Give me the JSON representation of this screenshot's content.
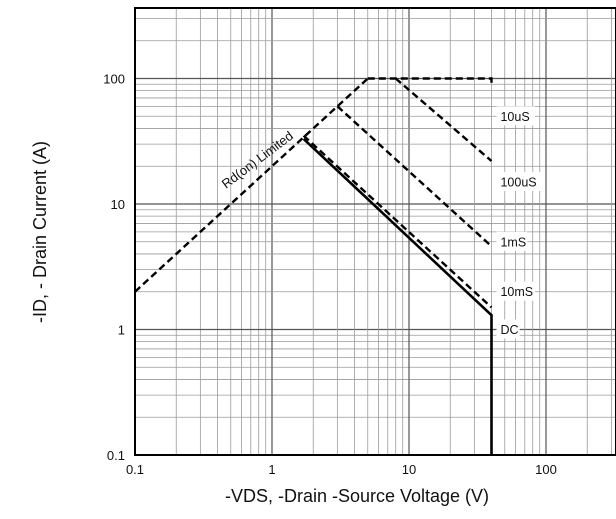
{
  "chart_data": {
    "type": "line",
    "title": "",
    "xlabel": "-VDS, -Drain -Source Voltage (V)",
    "ylabel": "-ID, - Drain Current (A)",
    "xscale": "log",
    "yscale": "log",
    "xlim": [
      0.1,
      400
    ],
    "ylim": [
      0.1,
      400
    ],
    "grid": true,
    "x_ticks": [
      "0.1",
      "1",
      "10",
      "100"
    ],
    "y_ticks": [
      "0.1",
      "1",
      "10",
      "100"
    ],
    "annotation": "Rd(on) Limited",
    "series": [
      {
        "name": "Rd(on) Limited",
        "style": "dashed",
        "x": [
          0.1,
          5
        ],
        "y": [
          2,
          100
        ]
      },
      {
        "name": "10uS",
        "style": "dashed",
        "x": [
          5,
          40,
          40
        ],
        "y": [
          100,
          100,
          90
        ]
      },
      {
        "name": "100uS",
        "style": "dashed",
        "x": [
          8,
          40
        ],
        "y": [
          100,
          22
        ]
      },
      {
        "name": "1mS",
        "style": "dashed",
        "x": [
          3,
          40
        ],
        "y": [
          60,
          4.6
        ]
      },
      {
        "name": "10mS",
        "style": "dashed",
        "x": [
          1.7,
          40
        ],
        "y": [
          35,
          1.5
        ]
      },
      {
        "name": "DC",
        "style": "solid",
        "x": [
          1.7,
          40,
          40
        ],
        "y": [
          33,
          1.3,
          0.1
        ]
      }
    ],
    "colors": {
      "line": "#000000",
      "grid": "#9a9a9a",
      "background": "#ffffff"
    }
  }
}
